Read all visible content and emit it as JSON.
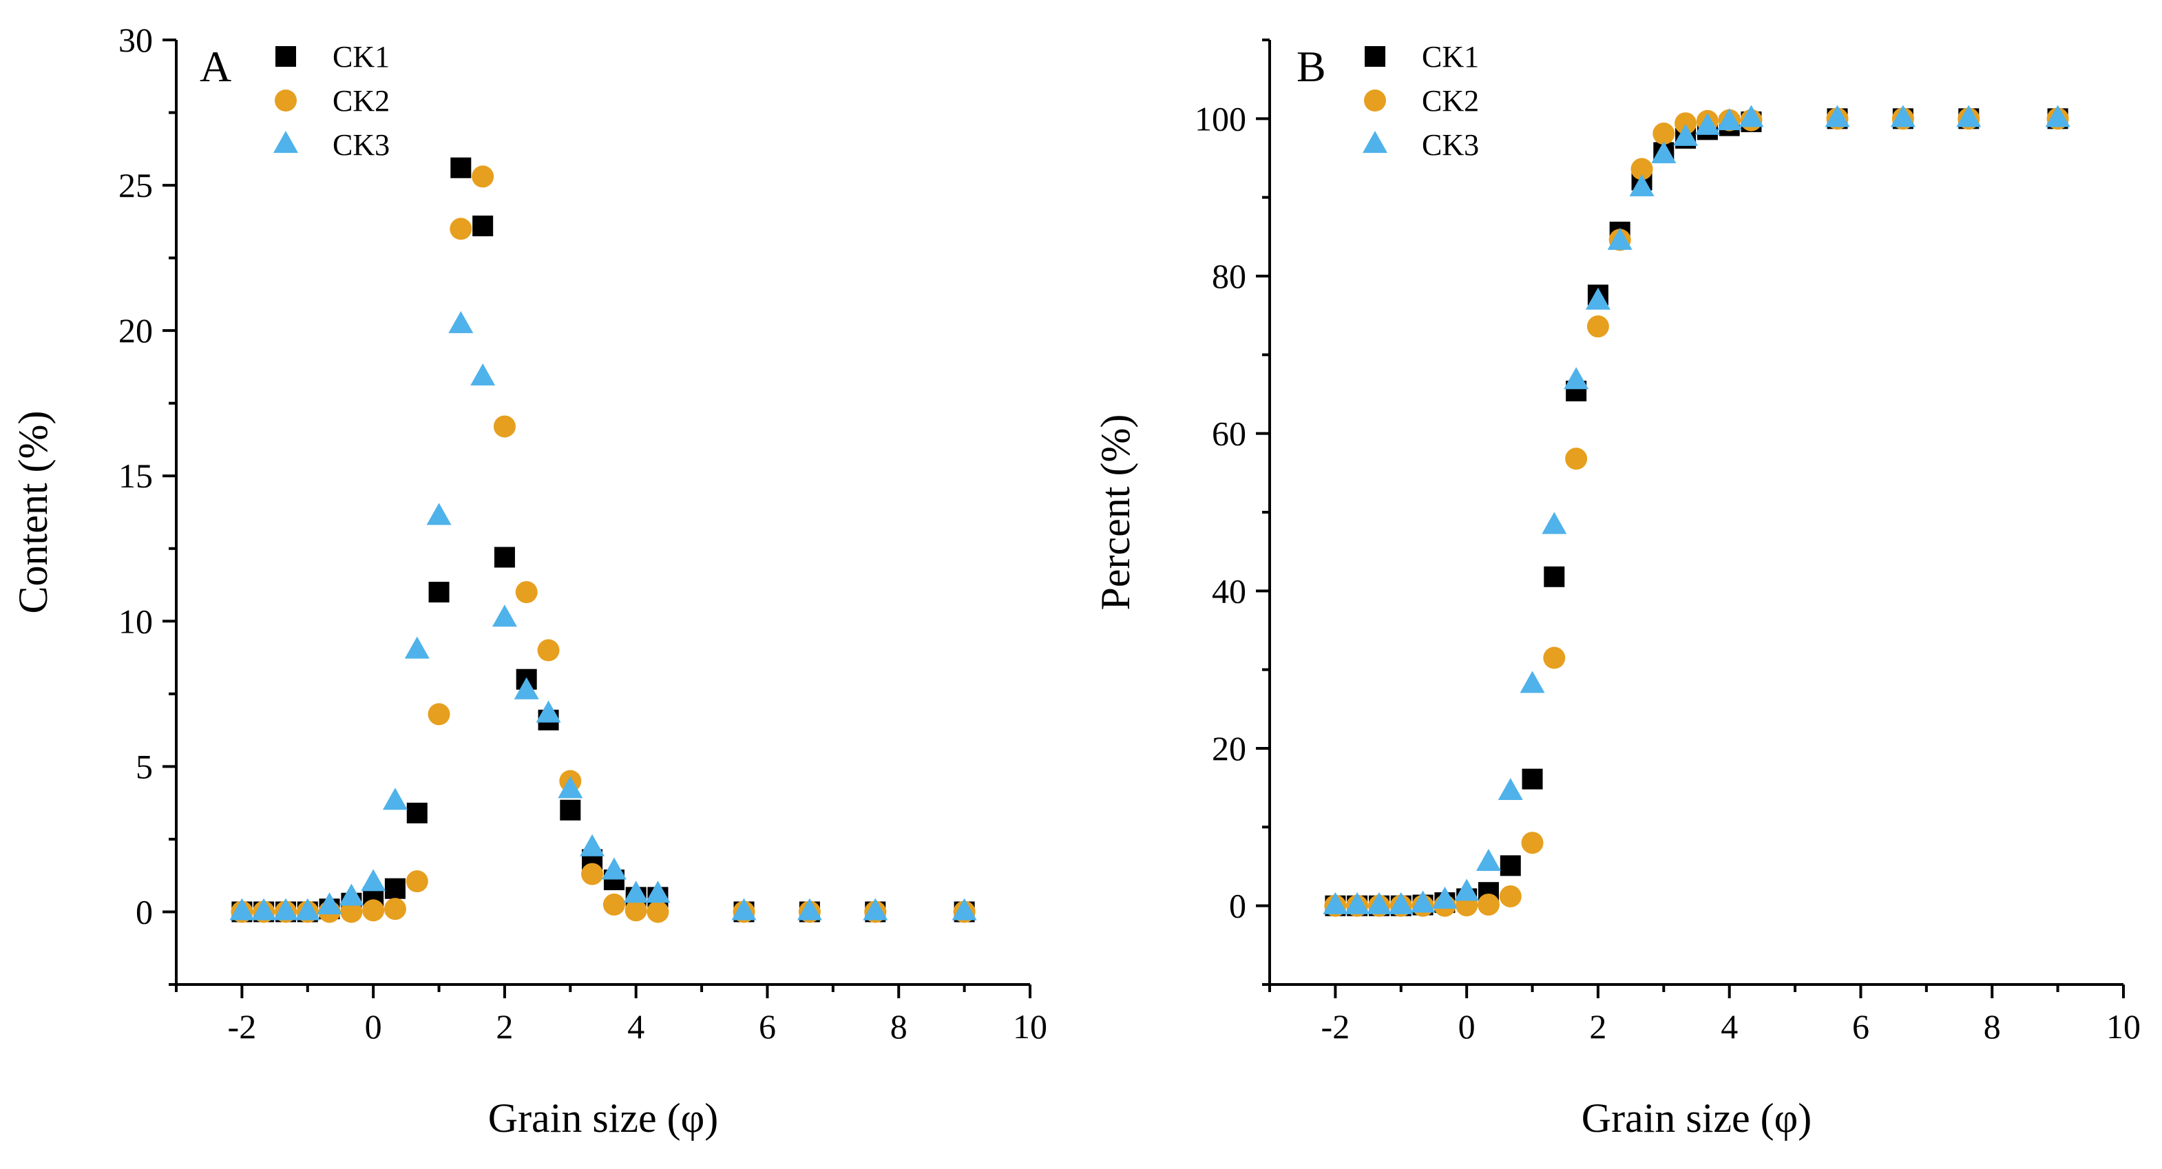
{
  "chart_data": [
    {
      "type": "scatter",
      "panel_label": "A",
      "xlabel": "Grain size (φ)",
      "ylabel": "Content (%)",
      "xlim": [
        -3,
        10
      ],
      "ylim": [
        -2.5,
        30
      ],
      "xticks": [
        -2,
        0,
        2,
        4,
        6,
        8,
        10
      ],
      "yticks": [
        0,
        5,
        10,
        15,
        20,
        25,
        30
      ],
      "legend_position": "top-left",
      "x": [
        -2,
        -1.667,
        -1.333,
        -1,
        -0.667,
        -0.333,
        0,
        0.333,
        0.667,
        1,
        1.333,
        1.667,
        2,
        2.333,
        2.667,
        3,
        3.333,
        3.667,
        4,
        4.333,
        5.644,
        6.644,
        7.644,
        9
      ],
      "series": [
        {
          "name": "CK1",
          "marker": "square",
          "color": "#000000",
          "values": [
            0,
            0,
            0,
            0,
            0.1,
            0.3,
            0.5,
            0.8,
            3.4,
            11.0,
            25.6,
            23.6,
            12.2,
            8.0,
            6.6,
            3.5,
            1.8,
            1.1,
            0.5,
            0.5,
            0,
            0,
            0,
            0
          ]
        },
        {
          "name": "CK2",
          "marker": "circle",
          "color": "#e69f1e",
          "values": [
            0,
            0,
            0,
            0,
            0,
            0,
            0.05,
            0.1,
            1.05,
            6.8,
            23.5,
            25.3,
            16.7,
            11.0,
            9.0,
            4.5,
            1.3,
            0.25,
            0.05,
            0,
            0,
            0,
            0,
            0
          ]
        },
        {
          "name": "CK3",
          "marker": "triangle",
          "color": "#4fb2ea",
          "values": [
            0,
            0,
            0,
            0,
            0.2,
            0.5,
            1.0,
            3.8,
            9.0,
            13.6,
            20.2,
            18.4,
            10.1,
            7.6,
            6.8,
            4.2,
            2.2,
            1.4,
            0.6,
            0.6,
            0,
            0,
            0,
            0
          ]
        }
      ]
    },
    {
      "type": "scatter",
      "panel_label": "B",
      "xlabel": "Grain size (φ)",
      "ylabel": "Percent (%)",
      "xlim": [
        -3,
        10
      ],
      "ylim": [
        -10,
        110
      ],
      "xticks": [
        -2,
        0,
        2,
        4,
        6,
        8,
        10
      ],
      "yticks": [
        0,
        20,
        40,
        60,
        80,
        100
      ],
      "legend_position": "top-left",
      "x": [
        -2,
        -1.667,
        -1.333,
        -1,
        -0.667,
        -0.333,
        0,
        0.333,
        0.667,
        1,
        1.333,
        1.667,
        2,
        2.333,
        2.667,
        3,
        3.333,
        3.667,
        4,
        4.333,
        5.644,
        6.644,
        7.644,
        9
      ],
      "series": [
        {
          "name": "CK1",
          "marker": "square",
          "color": "#000000",
          "values": [
            0,
            0,
            0,
            0,
            0.1,
            0.4,
            0.9,
            1.7,
            5.1,
            16.1,
            41.8,
            65.4,
            77.6,
            85.6,
            92.2,
            95.7,
            97.5,
            98.6,
            99.1,
            99.6,
            100,
            100,
            100,
            100
          ]
        },
        {
          "name": "CK2",
          "marker": "circle",
          "color": "#e69f1e",
          "values": [
            0,
            0,
            0,
            0,
            0,
            0,
            0.05,
            0.15,
            1.2,
            8.0,
            31.5,
            56.8,
            73.6,
            84.6,
            93.6,
            98.1,
            99.4,
            99.7,
            99.8,
            99.8,
            100,
            100,
            100,
            100
          ]
        },
        {
          "name": "CK3",
          "marker": "triangle",
          "color": "#4fb2ea",
          "values": [
            0,
            0,
            0,
            0,
            0.2,
            0.7,
            1.7,
            5.5,
            14.5,
            28.1,
            48.3,
            66.7,
            76.8,
            84.4,
            91.2,
            95.4,
            97.6,
            99.0,
            99.6,
            100,
            100,
            100,
            100,
            100
          ]
        }
      ]
    }
  ]
}
